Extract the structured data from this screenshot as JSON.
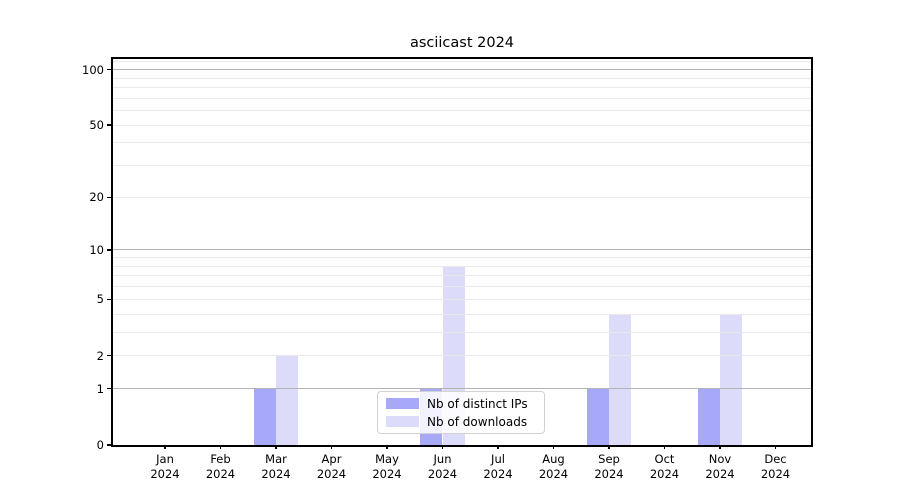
{
  "chart_data": {
    "type": "bar",
    "title": "asciicast 2024",
    "categories": [
      "Jan",
      "Feb",
      "Mar",
      "Apr",
      "May",
      "Jun",
      "Jul",
      "Aug",
      "Sep",
      "Oct",
      "Nov",
      "Dec"
    ],
    "x_year": "2024",
    "series": [
      {
        "name": "Nb of distinct IPs",
        "color": "#a8a8f8",
        "values": [
          0,
          0,
          1,
          0,
          0,
          1,
          0,
          0,
          1,
          0,
          1,
          0
        ]
      },
      {
        "name": "Nb of downloads",
        "color": "#dcdcfa",
        "values": [
          0,
          0,
          2,
          0,
          0,
          8,
          0,
          0,
          4,
          0,
          4,
          0
        ]
      }
    ],
    "y_ticks": [
      0,
      1,
      2,
      5,
      10,
      20,
      50,
      100
    ],
    "scale": "log10(1+v)",
    "ylim": [
      0,
      114
    ],
    "grid": {
      "on": true,
      "major": [
        1,
        10,
        100
      ],
      "minor": [
        2,
        3,
        4,
        5,
        6,
        7,
        8,
        9,
        20,
        30,
        40,
        50,
        60,
        70,
        80,
        90,
        110
      ],
      "major_color": "#b4b4b4",
      "minor_color": "#e9e9e9"
    },
    "legend_position": "lower center"
  }
}
